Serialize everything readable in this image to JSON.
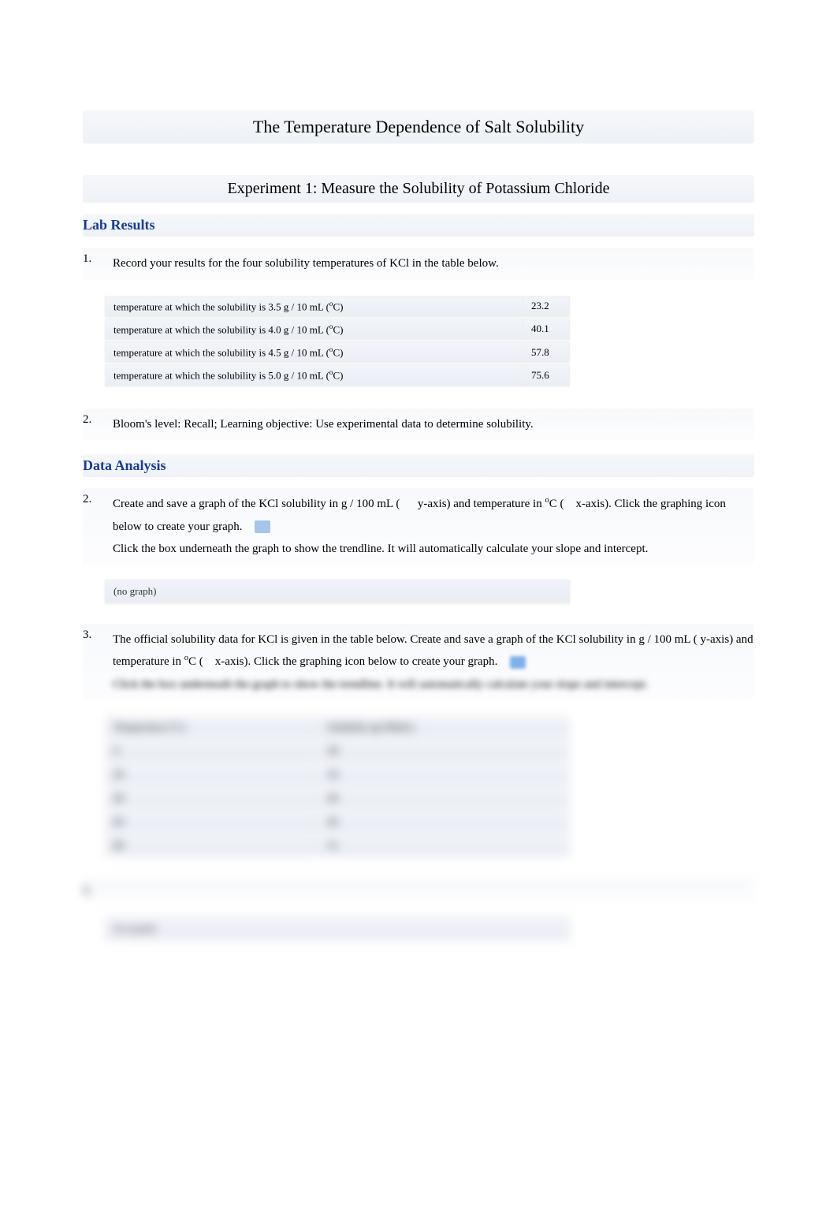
{
  "title": "The Temperature Dependence of Salt Solubility",
  "experiment_heading": "Experiment 1: Measure the Solubility of Potassium Chloride",
  "lab_results_heading": "Lab Results",
  "data_analysis_heading": "Data Analysis",
  "q1": {
    "num": "1.",
    "text": "Record your results for the four solubility temperatures of KCl in the table below."
  },
  "results_table": {
    "rows": [
      {
        "label_prefix": "temperature at which the solubility is 3.5 g / 10 mL (",
        "label_suffix": "C)",
        "value": "23.2"
      },
      {
        "label_prefix": "temperature at which the solubility is 4.0 g / 10 mL (",
        "label_suffix": "C)",
        "value": "40.1"
      },
      {
        "label_prefix": "temperature at which the solubility is 4.5 g / 10 mL (",
        "label_suffix": "C)",
        "value": "57.8"
      },
      {
        "label_prefix": "temperature at which the solubility is 5.0 g / 10 mL (",
        "label_suffix": "C)",
        "value": "75.6"
      }
    ],
    "degree": "o"
  },
  "q2_blooms": {
    "num": "2.",
    "text": "Bloom's level: Recall; Learning objective: Use experimental data to determine solubility."
  },
  "q2_graph": {
    "num": "2.",
    "part1": "Create and save a graph of the KCl solubility in g / 100 mL (",
    "yaxis": "y-axis) and temperature in ",
    "deg": "o",
    "c_open": "C (",
    "xaxis": "x-axis). Click the graphing icon below to create your graph.",
    "part2": "Click the box underneath the graph to show the trendline. It will automatically calculate your slope and intercept."
  },
  "no_graph": "(no graph)",
  "q3": {
    "num": "3.",
    "part1": "The official solubility data for KCl is given in the table below. Create and save a graph of the KCl solubility in g / 100 mL ( y-axis) and temperature in ",
    "deg": "o",
    "c_open": "C (",
    "xaxis": "x-axis). Click the graphing icon below to create your graph.",
    "blurred": "Click the box underneath the graph to show the trendline. It will automatically calculate your slope and intercept."
  },
  "official_table": {
    "headers": {
      "col1": "Temperature (°C)",
      "col2": "Solubility (g/100mL)"
    },
    "rows": [
      {
        "t": "0",
        "s": "28"
      },
      {
        "t": "20",
        "s": "34"
      },
      {
        "t": "40",
        "s": "40"
      },
      {
        "t": "60",
        "s": "46"
      },
      {
        "t": "80",
        "s": "51"
      }
    ]
  },
  "q4_num": "4.",
  "no_graph2": "(no graph)",
  "colors": {
    "heading_text": "#1a3c8f",
    "panel_bg_top": "#f5f7fa",
    "panel_bg_bottom": "#eef2f7",
    "text": "#000000"
  }
}
